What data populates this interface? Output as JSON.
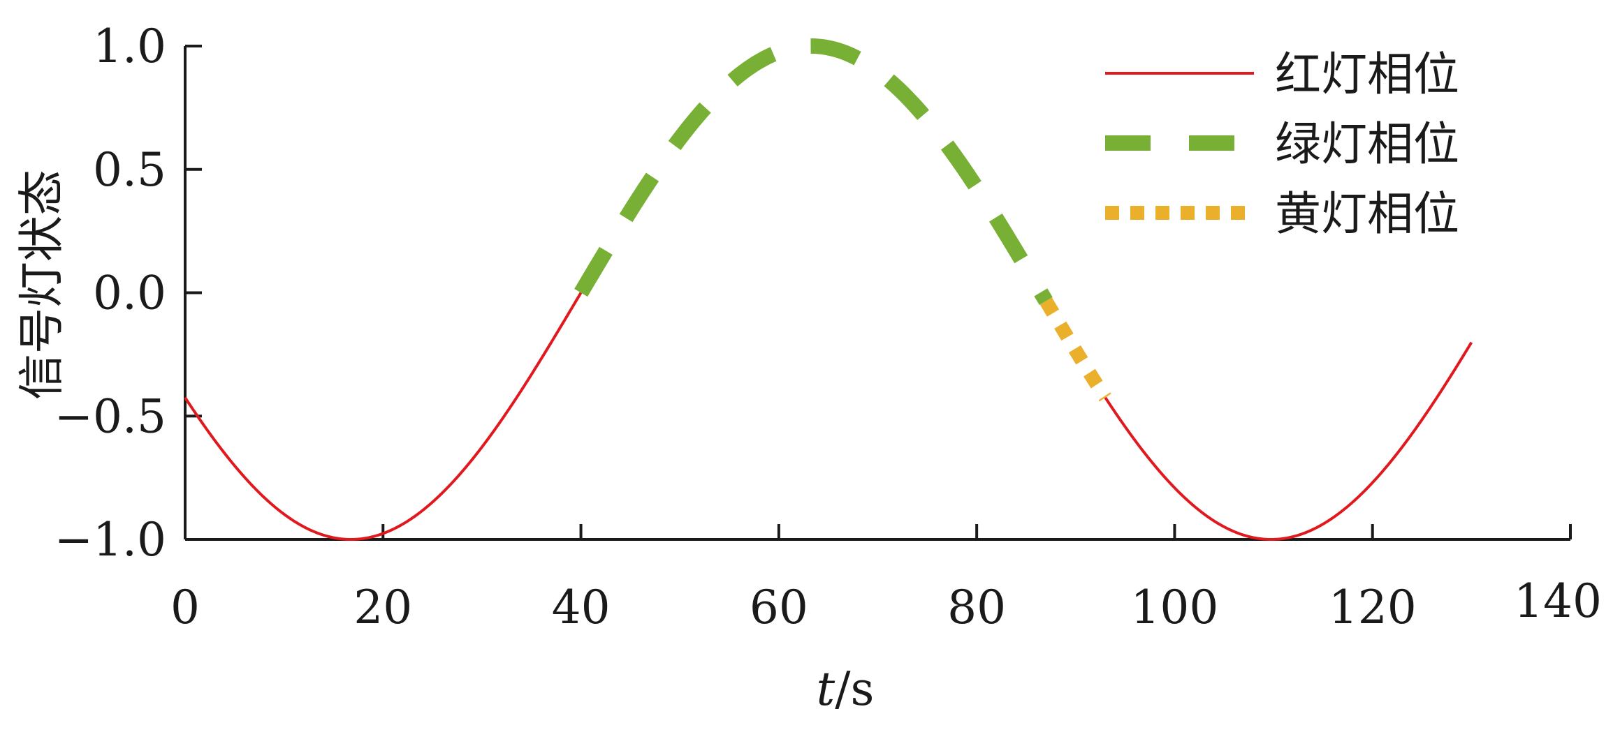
{
  "chart_data": {
    "type": "line",
    "title": "",
    "xlabel_italic": "t",
    "xlabel_unit": "/s",
    "ylabel": "信号灯状态",
    "xlim": [
      0,
      140
    ],
    "ylim": [
      -1.0,
      1.0
    ],
    "x_ticks": [
      0,
      20,
      40,
      60,
      80,
      100,
      120,
      140
    ],
    "y_ticks": [
      -1.0,
      -0.5,
      0.0,
      0.5,
      1.0
    ],
    "x_tick_labels": [
      "0",
      "20",
      "40",
      "60",
      "80",
      "100",
      "120",
      "140"
    ],
    "y_tick_labels": [
      "−1.0",
      "−0.5",
      "0.0",
      "0.5",
      "1.0"
    ],
    "grid": false,
    "legend_position": "top-right",
    "curve": {
      "function": "sin",
      "period": 93,
      "phase_zero_at_x": 40,
      "amplitude": 1.0
    },
    "series": [
      {
        "name": "红灯相位",
        "color": "#e0191f",
        "style": "solid",
        "segments": [
          [
            0,
            40
          ],
          [
            93,
            130
          ]
        ]
      },
      {
        "name": "绿灯相位",
        "color": "#77b035",
        "style": "dashed",
        "segments": [
          [
            40,
            87
          ]
        ]
      },
      {
        "name": "黄灯相位",
        "color": "#eab02c",
        "style": "dotted",
        "segments": [
          [
            87,
            93
          ]
        ]
      }
    ]
  }
}
